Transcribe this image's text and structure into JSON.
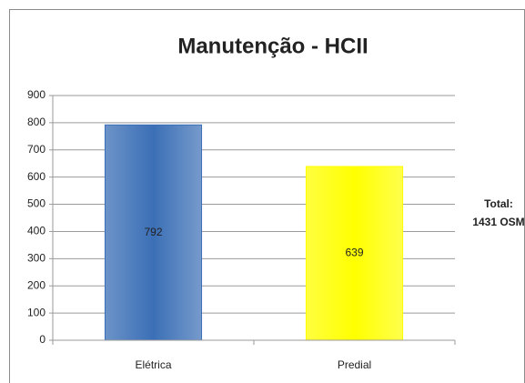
{
  "chart_data": {
    "type": "bar",
    "title": "Manutenção - HCII",
    "categories": [
      "Elétrica",
      "Predial"
    ],
    "values": [
      792,
      639
    ],
    "colors": [
      "#3b6fb6",
      "#ffff00"
    ],
    "ylim": [
      0,
      900
    ],
    "yticks": [
      0,
      100,
      200,
      300,
      400,
      500,
      600,
      700,
      800,
      900
    ],
    "grid": true,
    "annotation": [
      "Total:",
      "1431 OSM"
    ]
  }
}
